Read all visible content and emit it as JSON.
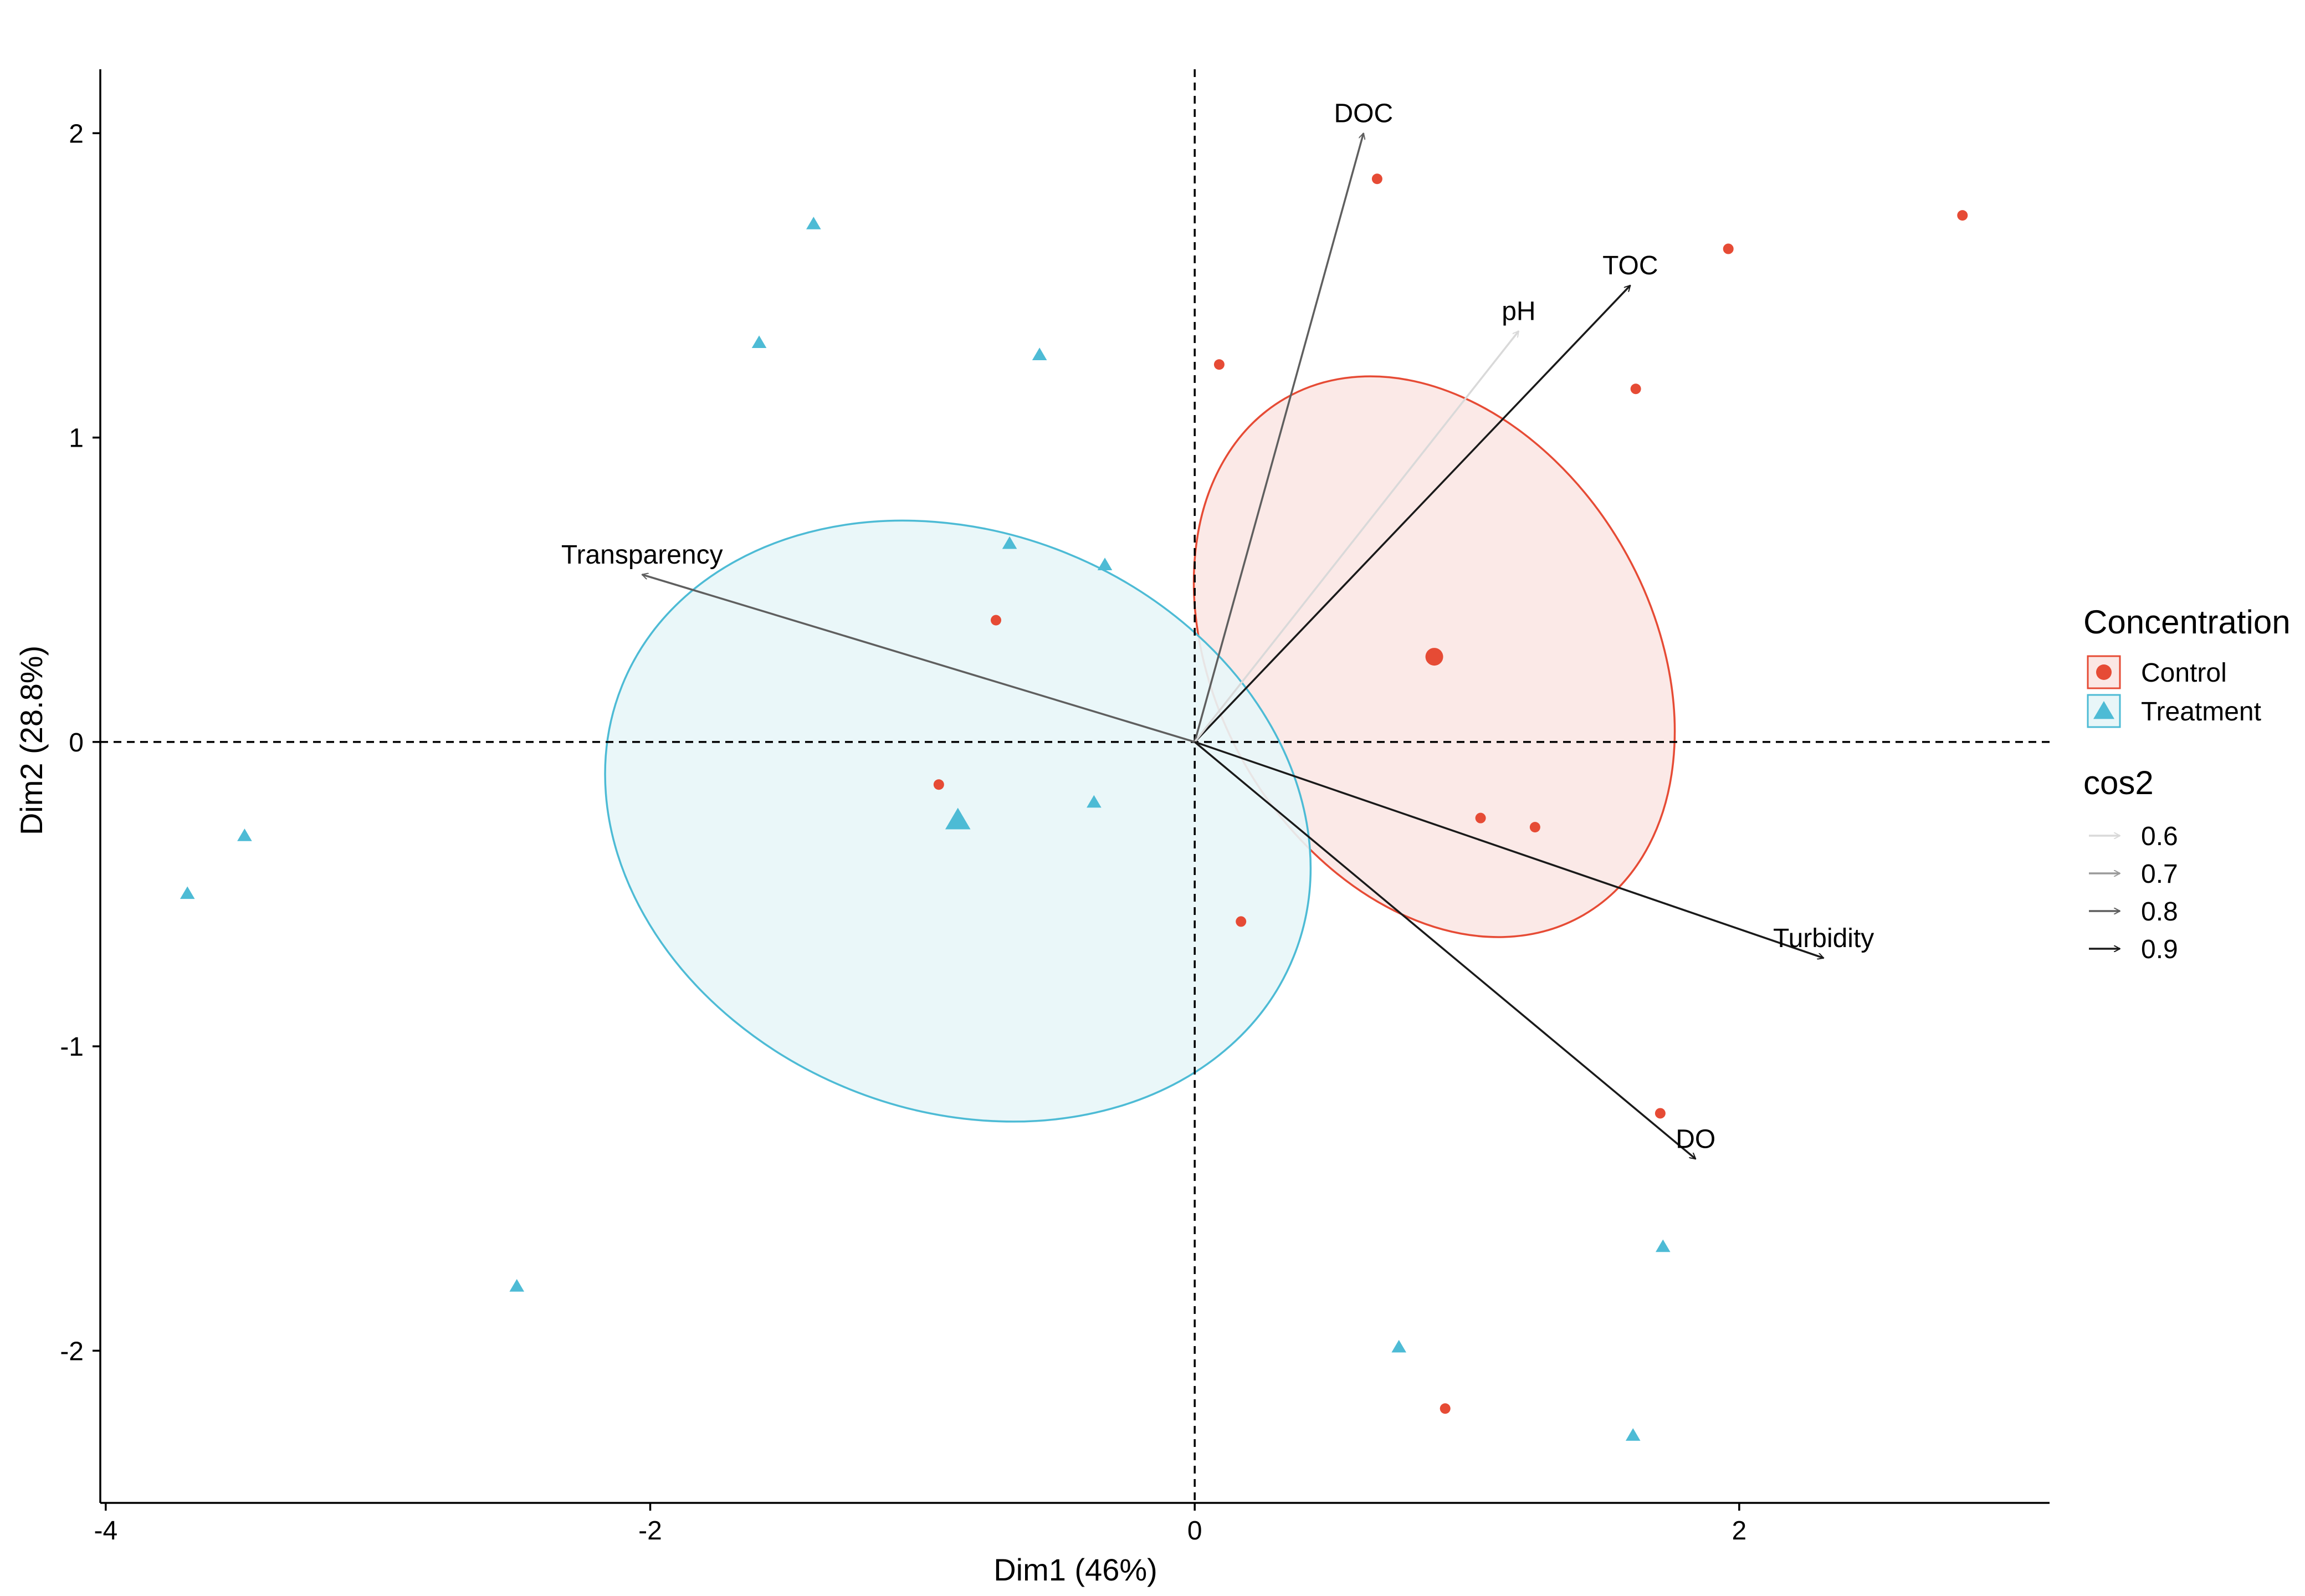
{
  "chart_data": {
    "type": "scatter",
    "title": "",
    "xlabel": "Dim1 (46%)",
    "ylabel": "Dim2 (28.8%)",
    "xlim": [
      -4.02,
      3.14
    ],
    "ylim": [
      -2.5,
      2.21
    ],
    "x_ticks": [
      -4,
      -2,
      0,
      2
    ],
    "y_ticks": [
      -2,
      -1,
      0,
      1,
      2
    ],
    "x_tick_labels": [
      "-4",
      "-2",
      "0",
      "2"
    ],
    "y_tick_labels": [
      "-2",
      "-1",
      "0",
      "1",
      "2"
    ],
    "grid": false,
    "reference_lines": {
      "x": 0,
      "y": 0,
      "style": "dashed"
    },
    "legend_placement": "right",
    "series": [
      {
        "name": "Control",
        "marker": "circle",
        "color": "#E64B35",
        "points": [
          {
            "x": 0.67,
            "y": 1.85
          },
          {
            "x": 2.82,
            "y": 1.73
          },
          {
            "x": 1.96,
            "y": 1.62
          },
          {
            "x": 0.09,
            "y": 1.24
          },
          {
            "x": 1.62,
            "y": 1.16
          },
          {
            "x": -0.73,
            "y": 0.4
          },
          {
            "x": -0.94,
            "y": -0.14
          },
          {
            "x": 1.05,
            "y": -0.25
          },
          {
            "x": 1.25,
            "y": -0.28
          },
          {
            "x": 0.17,
            "y": -0.59
          },
          {
            "x": 1.71,
            "y": -1.22
          },
          {
            "x": 0.92,
            "y": -2.19
          }
        ],
        "centroid": {
          "x": 0.88,
          "y": 0.28
        },
        "ellipse": {
          "cx": 0.88,
          "cy": 0.28,
          "rx": 0.8,
          "ry": 0.98,
          "angle_deg": 30,
          "fill": "#FBE7E4"
        }
      },
      {
        "name": "Treatment",
        "marker": "triangle",
        "color": "#4DBBD5",
        "points": [
          {
            "x": -1.4,
            "y": 1.7
          },
          {
            "x": -1.6,
            "y": 1.31
          },
          {
            "x": -0.57,
            "y": 1.27
          },
          {
            "x": -0.68,
            "y": 0.65
          },
          {
            "x": -0.33,
            "y": 0.58
          },
          {
            "x": -3.49,
            "y": -0.31
          },
          {
            "x": -3.7,
            "y": -0.5
          },
          {
            "x": -0.37,
            "y": -0.2
          },
          {
            "x": -2.49,
            "y": -1.79
          },
          {
            "x": 1.72,
            "y": -1.66
          },
          {
            "x": 0.75,
            "y": -1.99
          },
          {
            "x": 1.61,
            "y": -2.28
          }
        ],
        "centroid": {
          "x": -0.87,
          "y": -0.26
        },
        "ellipse": {
          "cx": -0.87,
          "cy": -0.26,
          "rx": 1.33,
          "ry": 0.95,
          "angle_deg": -22,
          "fill": "#E8F6F8"
        }
      }
    ],
    "vectors_title": "cos2",
    "vectors": [
      {
        "name": "DOC",
        "x": 0.62,
        "y": 2.0,
        "cos2": 0.8
      },
      {
        "name": "TOC",
        "x": 1.6,
        "y": 1.5,
        "cos2": 0.9
      },
      {
        "name": "pH",
        "x": 1.19,
        "y": 1.35,
        "cos2": 0.6
      },
      {
        "name": "Transparency",
        "x": -2.03,
        "y": 0.55,
        "cos2": 0.8
      },
      {
        "name": "Turbidity",
        "x": 2.31,
        "y": -0.71,
        "cos2": 0.9
      },
      {
        "name": "DO",
        "x": 1.84,
        "y": -1.37,
        "cos2": 0.9
      }
    ],
    "legend": {
      "group_title": "Concentration",
      "groups": [
        "Control",
        "Treatment"
      ],
      "cos2_title": "cos2",
      "cos2_levels": [
        "0.6",
        "0.7",
        "0.8",
        "0.9"
      ]
    }
  }
}
